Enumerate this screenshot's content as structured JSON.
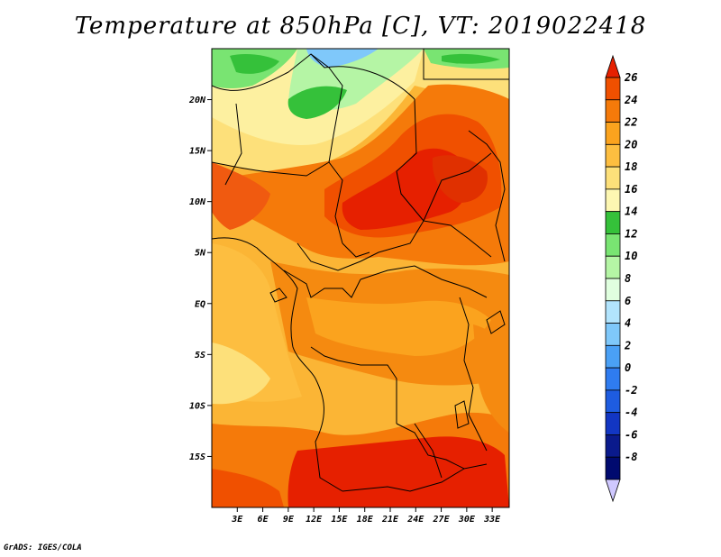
{
  "title": "Temperature at 850hPa [C], VT: 2019022418",
  "credit": "GrADS: IGES/COLA",
  "map": {
    "lon_ticks": [
      "3E",
      "6E",
      "9E",
      "12E",
      "15E",
      "18E",
      "21E",
      "24E",
      "27E",
      "30E",
      "33E"
    ],
    "lon_values": [
      3,
      6,
      9,
      12,
      15,
      18,
      21,
      24,
      27,
      30,
      33
    ],
    "lat_ticks": [
      "20N",
      "15N",
      "10N",
      "5N",
      "EQ",
      "5S",
      "10S",
      "15S"
    ],
    "lat_values": [
      20,
      15,
      10,
      5,
      0,
      -5,
      -10,
      -15
    ],
    "lon_range": [
      0,
      35
    ],
    "lat_range": [
      -20,
      25
    ]
  },
  "legend": {
    "labels": [
      "26",
      "24",
      "22",
      "20",
      "18",
      "16",
      "14",
      "12",
      "10",
      "8",
      "6",
      "4",
      "2",
      "0",
      "-2",
      "-4",
      "-6",
      "-8"
    ],
    "colors": [
      "#e62000",
      "#f05000",
      "#f57a0a",
      "#fba31e",
      "#fdbe40",
      "#fde07a",
      "#fdf7b2",
      "#35c13a",
      "#79e472",
      "#b5f5a5",
      "#e0ffdf",
      "#b2e4fd",
      "#7fc8fa",
      "#4aa0f5",
      "#2f7cf0",
      "#1e5ce0",
      "#1236c3",
      "#0a1a8c",
      "#000a6f",
      "#cfc8ff"
    ]
  }
}
